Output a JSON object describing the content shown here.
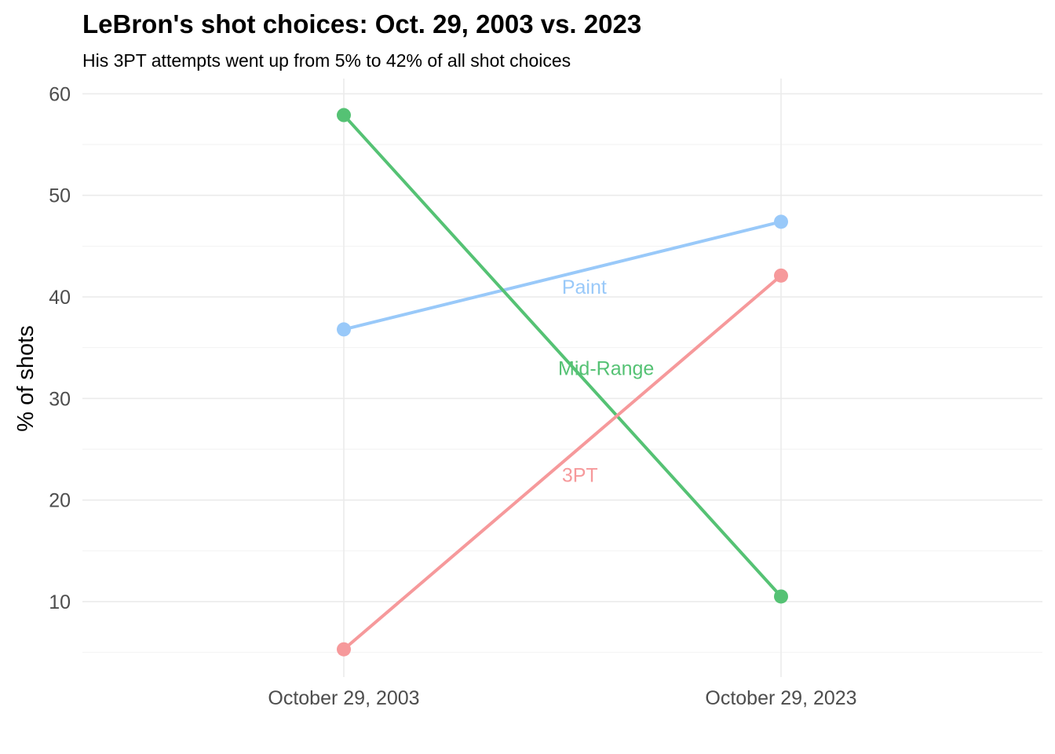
{
  "chart_data": {
    "type": "line",
    "title": "LeBron's shot choices: Oct. 29, 2003 vs. 2023",
    "subtitle": "His 3PT attempts went up from 5% to 42% of all shot choices",
    "xlabel": "",
    "ylabel": "% of shots",
    "categories": [
      "October 29, 2003",
      "October 29, 2023"
    ],
    "ylim": [
      3.5,
      61.5
    ],
    "yticks": [
      10,
      20,
      30,
      40,
      50,
      60
    ],
    "yminor": [
      5,
      15,
      25,
      35,
      45,
      55
    ],
    "grid": true,
    "legend": "none",
    "series": [
      {
        "name": "Paint",
        "values": [
          36.8,
          47.4
        ],
        "color": "#99c9f9",
        "label": "Paint",
        "label_pos": [
          0.55,
          41.0
        ]
      },
      {
        "name": "Mid-Range",
        "values": [
          57.9,
          10.5
        ],
        "color": "#55c274",
        "label": "Mid-Range",
        "label_pos": [
          0.6,
          33.0
        ]
      },
      {
        "name": "3PT",
        "values": [
          5.3,
          42.1
        ],
        "color": "#f6999b",
        "label": "3PT",
        "label_pos": [
          0.54,
          22.5
        ]
      }
    ]
  }
}
